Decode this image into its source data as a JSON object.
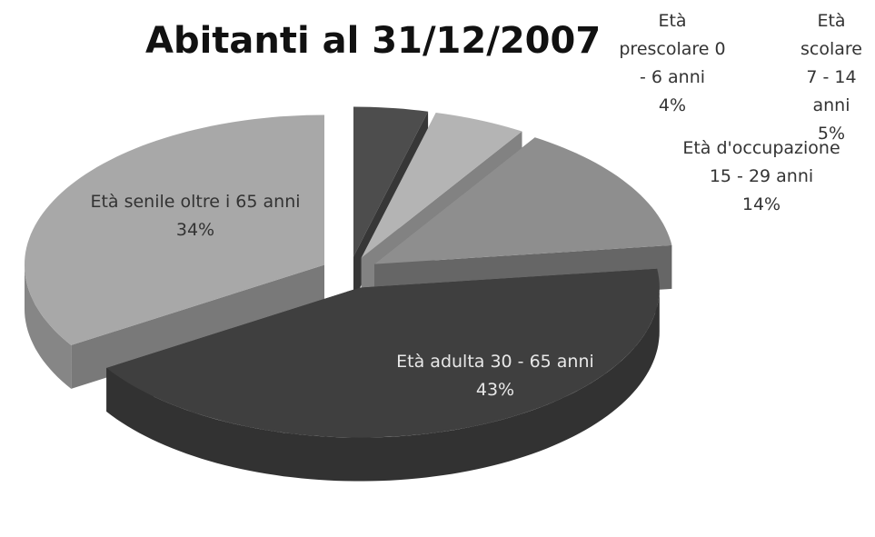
{
  "chart_data": {
    "type": "pie",
    "title": "Abitanti al 31/12/2007",
    "categories": [
      "Età prescolare 0 - 6 anni",
      "Età scolare 7 - 14 anni",
      "Età d'occupazione 15 - 29 anni",
      "Età adulta 30 - 65 anni",
      "Età senile oltre i 65 anni"
    ],
    "values": [
      4,
      5,
      14,
      43,
      34
    ],
    "value_labels": [
      "4%",
      "5%",
      "14%",
      "43%",
      "34%"
    ],
    "colors": [
      "#4d4d4d",
      "#b4b4b4",
      "#8e8e8e",
      "#3f3f3f",
      "#a8a8a8"
    ],
    "three_d": true,
    "exploded": true
  }
}
